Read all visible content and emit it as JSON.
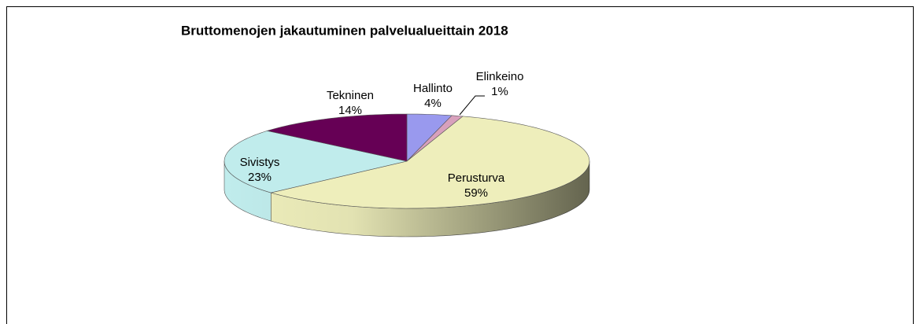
{
  "chart_data": {
    "type": "pie",
    "title": "Bruttomenojen jakautuminen palvelualueittain 2018",
    "categories": [
      "Hallinto",
      "Elinkeino",
      "Perusturva",
      "Sivistys",
      "Tekninen"
    ],
    "values": [
      4,
      1,
      59,
      23,
      14
    ],
    "value_labels": [
      "4%",
      "1%",
      "59%",
      "23%",
      "14%"
    ],
    "colors": [
      "#9999ee",
      "#d8a0bc",
      "#eeeebb",
      "#c0ecec",
      "#660055"
    ]
  }
}
